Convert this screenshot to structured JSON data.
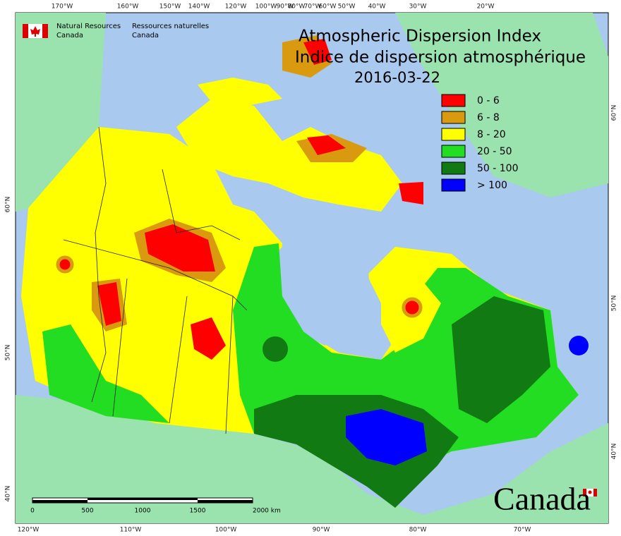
{
  "header": {
    "agency_en": [
      "Natural Resources",
      "Canada"
    ],
    "agency_fr": [
      "Ressources naturelles",
      "Canada"
    ]
  },
  "title": {
    "en": "Atmospheric Dispersion Index",
    "fr": "Indice de dispersion atmosphérique",
    "date": "2016-03-22"
  },
  "legend": [
    {
      "label": "0 - 6",
      "color": "#ff0000"
    },
    {
      "label": "6 - 8",
      "color": "#d99a10"
    },
    {
      "label": "8 - 20",
      "color": "#ffff00"
    },
    {
      "label": "20 - 50",
      "color": "#22dd22"
    },
    {
      "label": "50 - 100",
      "color": "#127a12"
    },
    {
      "label": "> 100",
      "color": "#0000ff"
    }
  ],
  "graticule": {
    "top": [
      "170°W",
      "160°W",
      "150°W",
      "140°W",
      "120°W",
      "100°W",
      "90°W",
      "80°W",
      "70°W",
      "60°W",
      "50°W",
      "40°W",
      "30°W",
      "20°W"
    ],
    "bottom": [
      "120°W",
      "110°W",
      "100°W",
      "90°W",
      "80°W",
      "70°W"
    ],
    "left": [
      "60°N",
      "50°N",
      "40°N"
    ],
    "right": [
      "60°N",
      "50°N",
      "40°N"
    ]
  },
  "scale_bar": {
    "labels": [
      "0",
      "500",
      "1000",
      "1500",
      "2000 km"
    ]
  },
  "wordmark": "Canada"
}
